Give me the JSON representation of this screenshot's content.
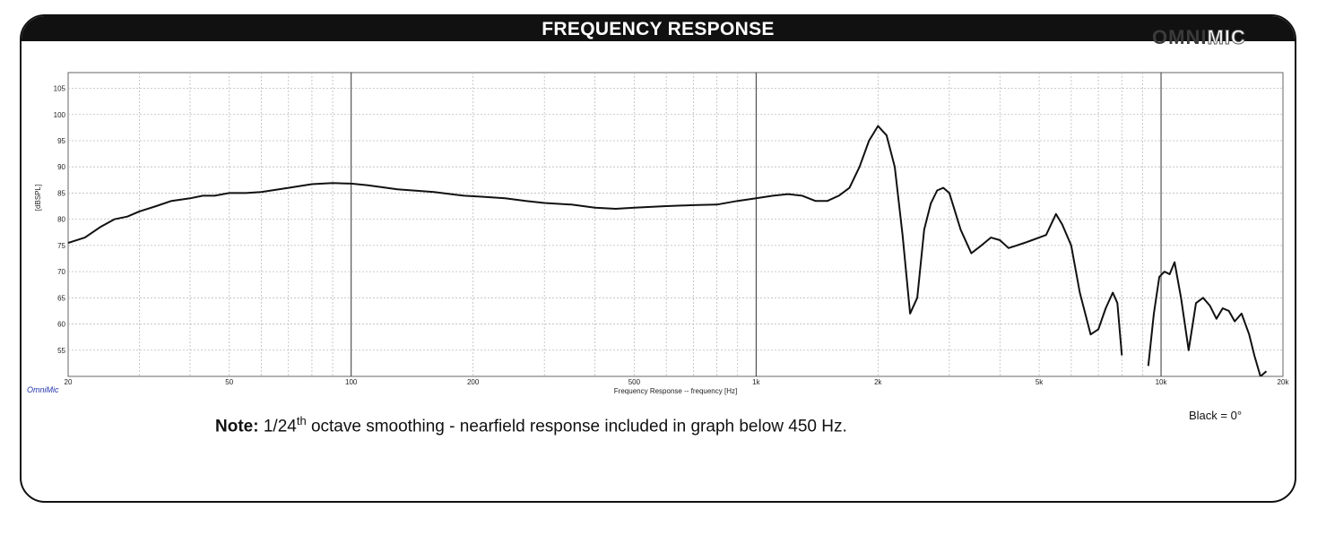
{
  "header": {
    "title": "FREQUENCY RESPONSE"
  },
  "logo": {
    "omni": "OMNI",
    "mic": "MIC"
  },
  "brand_label": "OmniMic",
  "note": {
    "bold": "Note:",
    "text_pre": "1/24",
    "sup": "th",
    "text_post": " octave smoothing - nearfield response included in graph below 450 Hz."
  },
  "black_label": "Black = 0°",
  "chart_data": {
    "type": "line",
    "title": "",
    "xlabel": "Frequency Response -- frequency [Hz]",
    "ylabel": "[dBSPL]",
    "xscale": "log",
    "xlim": [
      20,
      20000
    ],
    "ylim": [
      50,
      108
    ],
    "x_ticks": [
      {
        "value": 20,
        "label": "20"
      },
      {
        "value": 50,
        "label": "50"
      },
      {
        "value": 100,
        "label": "100"
      },
      {
        "value": 200,
        "label": "200"
      },
      {
        "value": 500,
        "label": "500"
      },
      {
        "value": 1000,
        "label": "1k"
      },
      {
        "value": 2000,
        "label": "2k"
      },
      {
        "value": 5000,
        "label": "5k"
      },
      {
        "value": 10000,
        "label": "10k"
      },
      {
        "value": 20000,
        "label": "20k"
      }
    ],
    "y_ticks": [
      55,
      60,
      65,
      70,
      75,
      80,
      85,
      90,
      95,
      100,
      105
    ],
    "grid": true,
    "series": [
      {
        "color": "#111111",
        "x": [
          20,
          22,
          24,
          26,
          28,
          30,
          33,
          36,
          40,
          43,
          46,
          50,
          55,
          60,
          70,
          80,
          90,
          100,
          110,
          130,
          160,
          190,
          210,
          240,
          270,
          300,
          350,
          400,
          450,
          500,
          600,
          700,
          800,
          900,
          1000,
          1100,
          1200,
          1300,
          1400,
          1500,
          1600,
          1700,
          1800,
          1900,
          2000,
          2100,
          2200,
          2300,
          2400,
          2500,
          2600,
          2700,
          2800,
          2900,
          3000,
          3200,
          3400,
          3600,
          3800,
          4000,
          4200,
          4400,
          4600,
          4800,
          5000,
          5200,
          5500,
          5700,
          6000,
          6300,
          6700,
          7000,
          7300,
          7600,
          7800,
          8000
        ],
        "y": [
          75.5,
          76.5,
          78.5,
          80,
          80.5,
          81.5,
          82.5,
          83.5,
          84,
          84.5,
          84.5,
          85,
          85,
          85.2,
          86,
          86.7,
          86.9,
          86.8,
          86.5,
          85.7,
          85.2,
          84.5,
          84.3,
          84,
          83.5,
          83.1,
          82.8,
          82.2,
          82,
          82.2,
          82.5,
          82.7,
          82.8,
          83.5,
          84,
          84.5,
          84.8,
          84.5,
          83.5,
          83.5,
          84.5,
          86,
          90,
          95,
          97.8,
          96,
          90,
          77,
          62,
          65,
          78,
          83,
          85.5,
          86,
          85,
          78,
          73.5,
          75,
          76.5,
          76,
          74.5,
          75,
          75.5,
          76,
          76.5,
          77,
          81,
          79,
          75,
          66,
          58,
          59,
          63,
          66,
          64,
          54
        ],
        "x2": [
          9300,
          9600,
          9900,
          10200,
          10500,
          10800,
          11200,
          11700,
          12200,
          12700,
          13200,
          13700,
          14200,
          14700,
          15200,
          15800,
          16500,
          17000,
          17600,
          18200
        ],
        "y2": [
          52,
          62,
          69,
          70,
          69.5,
          71.8,
          65,
          55,
          64,
          65,
          63.5,
          61,
          63,
          62.5,
          60.5,
          62,
          58,
          54,
          50,
          51
        ]
      }
    ]
  }
}
